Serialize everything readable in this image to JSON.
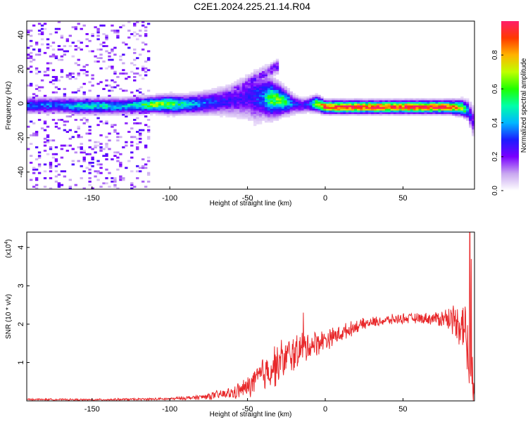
{
  "figure": {
    "title": "C2E1.2024.225.21.14.R04"
  },
  "chart_data": [
    {
      "type": "heatmap",
      "xlabel": "Height of straight line (km)",
      "ylabel": "Frequency (Hz)",
      "xlim": [
        -192,
        96
      ],
      "ylim": [
        -50,
        48
      ],
      "x_ticks": [
        -150,
        -100,
        -50,
        0,
        50
      ],
      "y_ticks": [
        -40,
        -20,
        0,
        20,
        40
      ],
      "colorbar": {
        "label": "Normalized spectral amplitude",
        "range": [
          0,
          1
        ],
        "ticks": [
          0.0,
          0.2,
          0.4,
          0.6,
          0.8
        ],
        "tick_labels": [
          "0.0",
          "0.2",
          "0.4",
          "0.6",
          "0.8"
        ],
        "colors": [
          "#ffffff",
          "#c9a8f0",
          "#7a00ff",
          "#1c1cff",
          "#00b7ff",
          "#00ffa8",
          "#20ff00",
          "#bfff00",
          "#ffb300",
          "#ff3a00",
          "#ff1e6a"
        ]
      },
      "ridge": {
        "x": [
          -192,
          -180,
          -170,
          -160,
          -150,
          -140,
          -130,
          -120,
          -110,
          -100,
          -90,
          -80,
          -70,
          -60,
          -55,
          -50,
          -45,
          -40,
          -35,
          -30,
          -25,
          -20,
          -15,
          -10,
          -5,
          0,
          5,
          10,
          20,
          30,
          40,
          50,
          60,
          70,
          80,
          88,
          92,
          95
        ],
        "freq": [
          -1,
          -1,
          -1,
          -1.5,
          -1.5,
          -1.5,
          -1.5,
          -1,
          -0.5,
          -0.5,
          -0.5,
          0,
          1,
          2,
          3,
          4,
          4,
          4,
          3,
          2,
          1,
          -0.5,
          -1,
          -0.5,
          0,
          -2,
          -2,
          -2,
          -2,
          -2,
          -2,
          -2,
          -2,
          -2,
          -2,
          -2.5,
          -4,
          -10
        ],
        "width": [
          2.5,
          2.5,
          2.5,
          2.5,
          2.5,
          2.5,
          2.5,
          2.5,
          2.5,
          3,
          3,
          3.5,
          4,
          5,
          6,
          7,
          8,
          7,
          6,
          5,
          4,
          3,
          2.5,
          2.5,
          2.5,
          2,
          2,
          2,
          2,
          2,
          2,
          2,
          2,
          2,
          2,
          2.5,
          3,
          5
        ],
        "peak": [
          0.35,
          0.35,
          0.35,
          0.45,
          0.45,
          0.45,
          0.4,
          0.5,
          0.65,
          0.6,
          0.45,
          0.35,
          0.3,
          0.25,
          0.25,
          0.25,
          0.3,
          0.35,
          0.6,
          0.6,
          0.5,
          0.3,
          0.25,
          0.3,
          0.7,
          0.95,
          0.95,
          0.95,
          0.95,
          0.95,
          0.95,
          0.95,
          0.95,
          0.95,
          0.95,
          0.7,
          0.35,
          0.2
        ]
      },
      "plume": {
        "x": [
          -65,
          -30
        ],
        "freq": [
          4,
          22
        ]
      },
      "scatter_bands": {
        "x": [
          [
            -192,
            -112
          ]
        ],
        "freq": [
          -50,
          48
        ],
        "peak": 0.22
      }
    },
    {
      "type": "line",
      "xlabel": "Height of straight line (km)",
      "ylabel": "SNR (10 * v/v)",
      "y_unit_label": "(x10",
      "y_unit_exponent": "4",
      "xlim": [
        -192,
        96
      ],
      "ylim": [
        0,
        4.4
      ],
      "x_ticks": [
        -150,
        -100,
        -50,
        0,
        50
      ],
      "y_ticks": [
        1,
        2,
        3,
        4
      ],
      "color": "#e8282a",
      "envelope": {
        "x": [
          -192,
          -150,
          -100,
          -80,
          -60,
          -50,
          -40,
          -30,
          -20,
          -10,
          0,
          10,
          20,
          30,
          40,
          50,
          60,
          70,
          80,
          85,
          90,
          93,
          95
        ],
        "mean": [
          0.04,
          0.03,
          0.05,
          0.1,
          0.2,
          0.35,
          0.7,
          1.0,
          1.25,
          1.45,
          1.6,
          1.75,
          1.95,
          2.05,
          2.1,
          2.15,
          2.15,
          2.15,
          2.15,
          2.1,
          1.9,
          0.9,
          0.45
        ],
        "noise": [
          0.02,
          0.02,
          0.03,
          0.06,
          0.15,
          0.25,
          0.45,
          0.5,
          0.45,
          0.35,
          0.25,
          0.2,
          0.15,
          0.12,
          0.12,
          0.12,
          0.12,
          0.15,
          0.3,
          0.45,
          0.7,
          1.1,
          0.4
        ]
      },
      "peaks": [
        {
          "x": -14,
          "y": 2.3
        },
        {
          "x": 93,
          "y": 4.4
        },
        {
          "x": 94,
          "y": 3.7
        }
      ]
    }
  ]
}
